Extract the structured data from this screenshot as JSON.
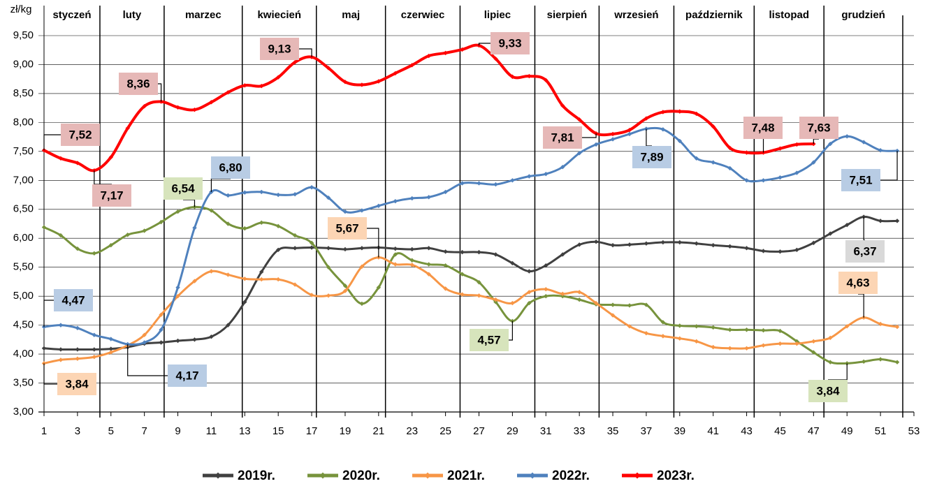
{
  "chart_data": {
    "type": "line",
    "y_label": "zł/kg",
    "months": [
      "styczeń",
      "luty",
      "marzec",
      "kwiecień",
      "maj",
      "czerwiec",
      "lipiec",
      "sierpień",
      "wrzesień",
      "październik",
      "listopad",
      "grudzień"
    ],
    "month_boundaries": [
      4.34,
      8.18,
      12.85,
      17.28,
      21.41,
      25.87,
      30.34,
      34.18,
      38.65,
      43.45,
      47.62
    ],
    "x": [
      1,
      2,
      3,
      4,
      5,
      6,
      7,
      8,
      9,
      10,
      11,
      12,
      13,
      14,
      15,
      16,
      17,
      18,
      19,
      20,
      21,
      22,
      23,
      24,
      25,
      26,
      27,
      28,
      29,
      30,
      31,
      32,
      33,
      34,
      35,
      36,
      37,
      38,
      39,
      40,
      41,
      42,
      43,
      44,
      45,
      46,
      47,
      48,
      49,
      50,
      51,
      52
    ],
    "xlim": [
      1,
      53
    ],
    "xticks": [
      1,
      3,
      5,
      7,
      9,
      11,
      13,
      15,
      17,
      19,
      21,
      23,
      25,
      27,
      29,
      31,
      33,
      35,
      37,
      39,
      41,
      43,
      45,
      47,
      49,
      51,
      53
    ],
    "ylim": [
      3,
      9.5
    ],
    "yticks": [
      {
        "value": 3,
        "label": "3,00"
      },
      {
        "value": 3.5,
        "label": "3,50"
      },
      {
        "value": 4,
        "label": "4,00"
      },
      {
        "value": 4.5,
        "label": "4,50"
      },
      {
        "value": 5,
        "label": "5,00"
      },
      {
        "value": 5.5,
        "label": "5,50"
      },
      {
        "value": 6,
        "label": "6,00"
      },
      {
        "value": 6.5,
        "label": "6,50"
      },
      {
        "value": 7,
        "label": "7,00"
      },
      {
        "value": 7.5,
        "label": "7,50"
      },
      {
        "value": 8,
        "label": "8,00"
      },
      {
        "value": 8.5,
        "label": "8,50"
      },
      {
        "value": 9,
        "label": "9,00"
      },
      {
        "value": 9.5,
        "label": "9,50"
      }
    ],
    "grid": true,
    "legend": "bottom",
    "series": [
      {
        "name": "2019r.",
        "color": "#404040",
        "label_color": "#d9d9d9",
        "values": [
          4.1,
          4.08,
          4.08,
          4.08,
          4.09,
          4.12,
          4.18,
          4.2,
          4.23,
          4.25,
          4.3,
          4.5,
          4.9,
          5.42,
          5.8,
          5.83,
          5.84,
          5.83,
          5.81,
          5.83,
          5.84,
          5.82,
          5.81,
          5.83,
          5.77,
          5.76,
          5.76,
          5.72,
          5.57,
          5.43,
          5.53,
          5.72,
          5.89,
          5.94,
          5.88,
          5.89,
          5.91,
          5.93,
          5.93,
          5.91,
          5.88,
          5.86,
          5.83,
          5.78,
          5.77,
          5.8,
          5.92,
          6.08,
          6.23,
          6.37,
          6.3,
          6.3
        ],
        "callouts": [
          {
            "x": 50,
            "value": 6.37,
            "label": "6,37"
          }
        ]
      },
      {
        "name": "2020r.",
        "color": "#77933c",
        "label_color": "#d7e4bc",
        "values": [
          6.19,
          6.05,
          5.82,
          5.74,
          5.88,
          6.06,
          6.13,
          6.28,
          6.46,
          6.54,
          6.48,
          6.25,
          6.17,
          6.27,
          6.21,
          6.05,
          5.92,
          5.5,
          5.18,
          4.87,
          5.15,
          5.72,
          5.62,
          5.55,
          5.53,
          5.38,
          5.24,
          4.9,
          4.57,
          4.88,
          5.0,
          5.0,
          4.94,
          4.86,
          4.85,
          4.84,
          4.85,
          4.55,
          4.49,
          4.48,
          4.46,
          4.42,
          4.42,
          4.41,
          4.4,
          4.22,
          4.03,
          3.86,
          3.84,
          3.87,
          3.91,
          3.86
        ],
        "callouts": [
          {
            "x": 10,
            "value": 6.54,
            "label": "6,54"
          },
          {
            "x": 29,
            "value": 4.57,
            "label": "4,57"
          },
          {
            "x": 49,
            "value": 3.84,
            "label": "3,84"
          }
        ]
      },
      {
        "name": "2021r.",
        "color": "#f79646",
        "label_color": "#fcd5b4",
        "values": [
          3.84,
          3.9,
          3.92,
          3.95,
          4.03,
          4.15,
          4.33,
          4.68,
          5.0,
          5.26,
          5.43,
          5.37,
          5.3,
          5.29,
          5.29,
          5.2,
          5.02,
          5.01,
          5.09,
          5.51,
          5.67,
          5.55,
          5.54,
          5.38,
          5.13,
          5.03,
          5.01,
          4.94,
          4.88,
          5.07,
          5.12,
          5.04,
          5.07,
          4.88,
          4.67,
          4.48,
          4.36,
          4.31,
          4.27,
          4.22,
          4.12,
          4.1,
          4.1,
          4.15,
          4.18,
          4.18,
          4.22,
          4.28,
          4.48,
          4.63,
          4.52,
          4.47
        ],
        "callouts": [
          {
            "x": 1,
            "value": 3.84,
            "label": "3,84"
          },
          {
            "x": 21,
            "value": 5.67,
            "label": "5,67"
          },
          {
            "x": 50,
            "value": 4.63,
            "label": "4,63"
          }
        ]
      },
      {
        "name": "2022r.",
        "color": "#4f81bd",
        "label_color": "#b8cce4",
        "values": [
          4.47,
          4.5,
          4.45,
          4.33,
          4.26,
          4.17,
          4.2,
          4.42,
          5.15,
          6.18,
          6.8,
          6.74,
          6.79,
          6.8,
          6.75,
          6.76,
          6.88,
          6.7,
          6.46,
          6.48,
          6.56,
          6.64,
          6.69,
          6.71,
          6.8,
          6.95,
          6.95,
          6.93,
          7.0,
          7.07,
          7.11,
          7.23,
          7.47,
          7.62,
          7.71,
          7.8,
          7.89,
          7.88,
          7.68,
          7.38,
          7.31,
          7.21,
          7.0,
          7.0,
          7.05,
          7.13,
          7.31,
          7.63,
          7.76,
          7.66,
          7.52,
          7.51
        ],
        "callouts": [
          {
            "x": 1,
            "value": 4.47,
            "label": "4,47"
          },
          {
            "x": 6,
            "value": 4.17,
            "label": "4,17"
          },
          {
            "x": 11,
            "value": 6.8,
            "label": "6,80"
          },
          {
            "x": 37,
            "value": 7.89,
            "label": "7,89"
          },
          {
            "x": 52,
            "value": 7.51,
            "label": "7,51"
          }
        ]
      },
      {
        "name": "2023r.",
        "color": "#ff0000",
        "label_color": "#e6b8b7",
        "values": [
          7.52,
          7.38,
          7.3,
          7.17,
          7.4,
          7.9,
          8.28,
          8.36,
          8.26,
          8.22,
          8.35,
          8.52,
          8.64,
          8.63,
          8.78,
          9.04,
          9.13,
          8.94,
          8.7,
          8.65,
          8.71,
          8.85,
          8.99,
          9.15,
          9.2,
          9.26,
          9.33,
          9.1,
          8.79,
          8.8,
          8.73,
          8.29,
          8.05,
          7.81,
          7.8,
          7.87,
          8.07,
          8.18,
          8.19,
          8.15,
          7.93,
          7.56,
          7.48,
          7.48,
          7.55,
          7.62,
          7.63,
          null,
          null,
          null,
          null,
          null
        ],
        "callouts": [
          {
            "x": 1,
            "value": 7.52,
            "label": "7,52"
          },
          {
            "x": 4,
            "value": 7.17,
            "label": "7,17"
          },
          {
            "x": 8,
            "value": 8.36,
            "label": "8,36"
          },
          {
            "x": 17,
            "value": 9.13,
            "label": "9,13"
          },
          {
            "x": 27,
            "value": 9.33,
            "label": "9,33"
          },
          {
            "x": 34,
            "value": 7.81,
            "label": "7,81"
          },
          {
            "x": 44,
            "value": 7.48,
            "label": "7,48"
          },
          {
            "x": 47,
            "value": 7.63,
            "label": "7,63"
          }
        ]
      }
    ]
  }
}
